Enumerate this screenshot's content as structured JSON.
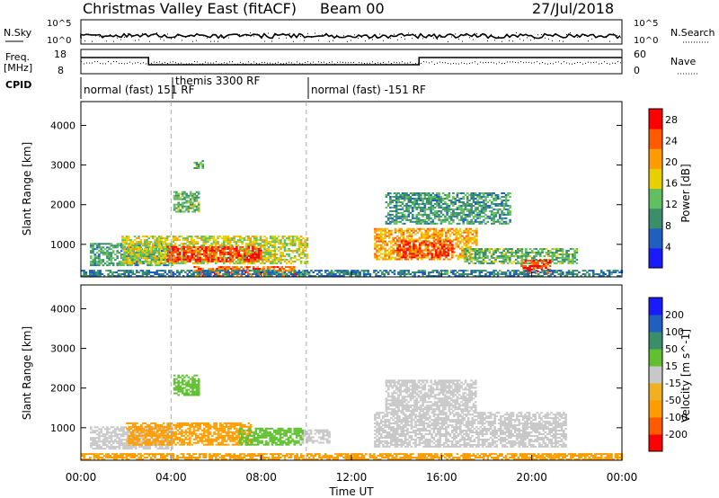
{
  "header": {
    "station": "Christmas Valley East (fitACF)",
    "beam": "Beam 00",
    "date": "27/Jul/2018"
  },
  "panels": {
    "nsky_label": "N.Sky",
    "nsearch_label": "N.Search",
    "nsky_ticks": [
      "10^5",
      "10^0"
    ],
    "nsearch_ticks": [
      "10^5",
      "10^0"
    ],
    "freq_label_1": "Freq.",
    "freq_label_2": "[MHz]",
    "freq_ticks": [
      "18",
      "8"
    ],
    "nave_label": "Nave",
    "nave_ticks": [
      "60",
      "0"
    ],
    "cpid_label": "CPID",
    "cpid_segments": [
      {
        "label": "normal (fast) 151 RF",
        "start_h": 0
      },
      {
        "label": "themis 3300 RF",
        "start_h": 4
      },
      {
        "label": "normal (fast) -151 RF",
        "start_h": 10
      }
    ]
  },
  "chart_data": [
    {
      "type": "heatmap",
      "name": "power",
      "ylabel": "Slant Range [km]",
      "ylim": [
        180,
        4600
      ],
      "yticks": [
        1000,
        2000,
        3000,
        4000
      ],
      "xlim_hours": [
        0,
        24
      ],
      "colorbar_label": "Power [dB]",
      "colorbar_ticks": [
        4,
        8,
        12,
        16,
        20,
        24,
        28
      ],
      "colorbar_range": [
        0,
        30
      ],
      "colors": [
        "#1a1aff",
        "#1f5fbf",
        "#3a8f6a",
        "#60c060",
        "#e8d000",
        "#ff9c00",
        "#ff5a00",
        "#ff0000"
      ],
      "echo_regions": [
        {
          "t0": 0.4,
          "t1": 4.0,
          "r0": 450,
          "r1": 1000,
          "p": 10
        },
        {
          "t0": 1.8,
          "t1": 10.0,
          "r0": 500,
          "r1": 1200,
          "p": 16
        },
        {
          "t0": 3.8,
          "t1": 8.0,
          "r0": 550,
          "r1": 950,
          "p": 26
        },
        {
          "t0": 5.0,
          "t1": 9.5,
          "r0": 180,
          "r1": 420,
          "p": 24
        },
        {
          "t0": 4.1,
          "t1": 5.2,
          "r0": 1800,
          "r1": 2300,
          "p": 12
        },
        {
          "t0": 5.0,
          "t1": 5.4,
          "r0": 2900,
          "r1": 3100,
          "p": 12
        },
        {
          "t0": 13.0,
          "t1": 17.5,
          "r0": 600,
          "r1": 1400,
          "p": 20
        },
        {
          "t0": 14.0,
          "t1": 16.5,
          "r0": 650,
          "r1": 1100,
          "p": 26
        },
        {
          "t0": 13.5,
          "t1": 19.0,
          "r0": 1500,
          "r1": 2300,
          "p": 10
        },
        {
          "t0": 17.0,
          "t1": 22.0,
          "r0": 500,
          "r1": 900,
          "p": 12
        },
        {
          "t0": 19.5,
          "t1": 20.8,
          "r0": 250,
          "r1": 600,
          "p": 26
        },
        {
          "t0": 0.0,
          "t1": 24.0,
          "r0": 180,
          "r1": 320,
          "p": 8
        }
      ]
    },
    {
      "type": "heatmap",
      "name": "velocity",
      "ylabel": "Slant Range [km]",
      "ylim": [
        180,
        4600
      ],
      "yticks": [
        1000,
        2000,
        3000,
        4000
      ],
      "xlim_hours": [
        0,
        24
      ],
      "xticks": [
        "00:00",
        "04:00",
        "08:00",
        "12:00",
        "16:00",
        "20:00",
        "00:00"
      ],
      "xlabel": "Time UT",
      "colorbar_label": "Velocity [m s^-1]",
      "colorbar_ticks": [
        "200",
        "100",
        "50",
        "15",
        "-15",
        "-50",
        "-100",
        "-200"
      ],
      "colors": [
        "#ff0000",
        "#ff5a00",
        "#ff9c00",
        "#f0b020",
        "#c8c8c8",
        "#60c030",
        "#3a8f6a",
        "#1f5fbf",
        "#1a1aff"
      ],
      "echo_regions": [
        {
          "t0": 0.4,
          "t1": 4.0,
          "r0": 450,
          "r1": 1000,
          "v": 0
        },
        {
          "t0": 2.0,
          "t1": 7.5,
          "r0": 550,
          "r1": 1100,
          "v": -40
        },
        {
          "t0": 7.0,
          "t1": 9.8,
          "r0": 550,
          "r1": 1000,
          "v": 40
        },
        {
          "t0": 9.8,
          "t1": 11.0,
          "r0": 600,
          "r1": 950,
          "v": 0
        },
        {
          "t0": 13.0,
          "t1": 21.5,
          "r0": 500,
          "r1": 1400,
          "v": 0
        },
        {
          "t0": 13.5,
          "t1": 17.5,
          "r0": 1400,
          "r1": 2200,
          "v": 0
        },
        {
          "t0": 4.1,
          "t1": 5.2,
          "r0": 1800,
          "r1": 2300,
          "v": 30
        },
        {
          "t0": 0.0,
          "t1": 24.0,
          "r0": 180,
          "r1": 320,
          "v": -40
        }
      ]
    }
  ]
}
